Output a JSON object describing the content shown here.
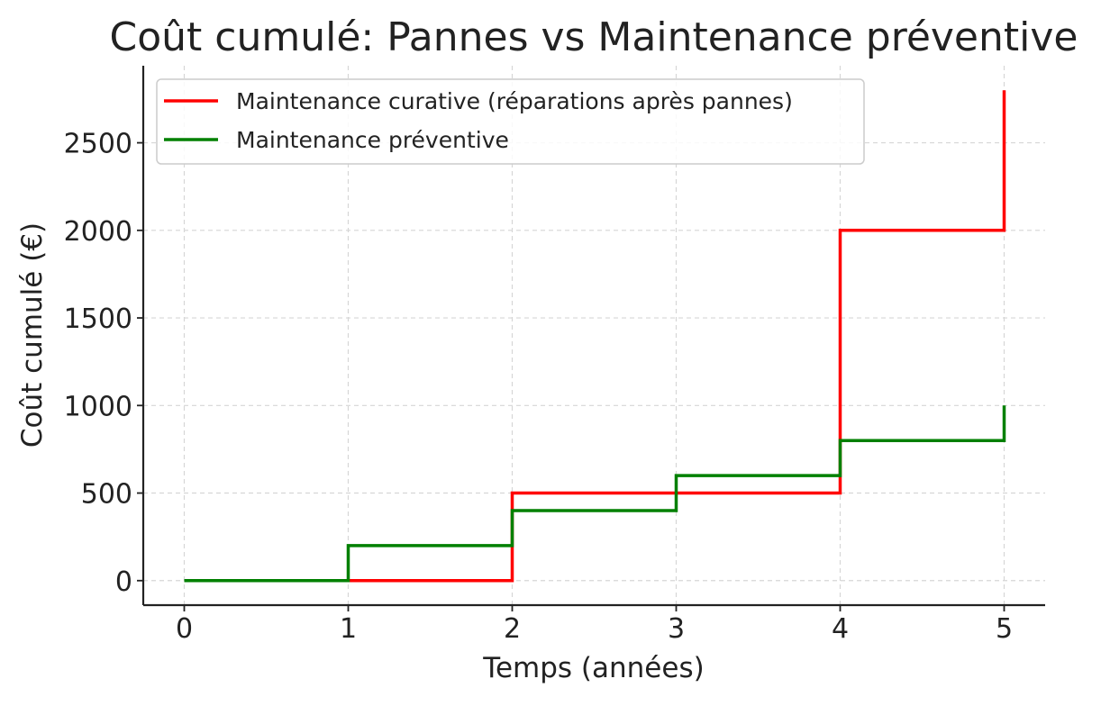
{
  "chart_data": {
    "type": "line",
    "step": "post",
    "title": "Coût cumulé: Pannes vs Maintenance préventive",
    "xlabel": "Temps (années)",
    "ylabel": "Coût cumulé (€)",
    "x": [
      0,
      1,
      2,
      3,
      4,
      5
    ],
    "xlim": [
      -0.25,
      5.25
    ],
    "ylim": [
      -140,
      2940
    ],
    "xticks": [
      0,
      1,
      2,
      3,
      4,
      5
    ],
    "yticks": [
      0,
      500,
      1000,
      1500,
      2000,
      2500
    ],
    "grid": true,
    "legend_position": "top-left",
    "series": [
      {
        "name": "Maintenance curative (réparations après pannes)",
        "color": "#ff0000",
        "values": [
          0,
          0,
          500,
          500,
          2000,
          2800
        ]
      },
      {
        "name": "Maintenance préventive",
        "color": "#008000",
        "values": [
          0,
          200,
          400,
          600,
          800,
          1000
        ]
      }
    ]
  }
}
